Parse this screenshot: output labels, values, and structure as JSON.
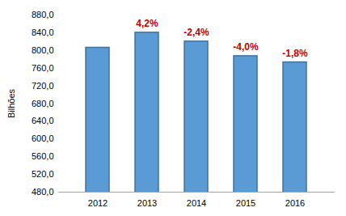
{
  "chart_data": {
    "type": "bar",
    "y_label": "Bilhões",
    "categories": [
      "2012",
      "2013",
      "2014",
      "2015",
      "2016"
    ],
    "values": [
      806,
      840,
      820,
      787,
      773
    ],
    "color": "#5b9bd5",
    "ylim": [
      480,
      880
    ],
    "yticks": [
      {
        "value": 480,
        "label": "480,0"
      },
      {
        "value": 520,
        "label": "520,0"
      },
      {
        "value": 560,
        "label": "560,0"
      },
      {
        "value": 600,
        "label": "600,0"
      },
      {
        "value": 640,
        "label": "640,0"
      },
      {
        "value": 680,
        "label": "680,0"
      },
      {
        "value": 720,
        "label": "720,0"
      },
      {
        "value": 760,
        "label": "760,0"
      },
      {
        "value": 800,
        "label": "800,0"
      },
      {
        "value": 840,
        "label": "840,0"
      },
      {
        "value": 880,
        "label": "880,0"
      }
    ],
    "annotations": [
      {
        "category": "2013",
        "text": "4,2%"
      },
      {
        "category": "2014",
        "text": "-2,4%"
      },
      {
        "category": "2015",
        "text": "-4,0%"
      },
      {
        "category": "2016",
        "text": "-1,8%"
      }
    ],
    "grid": false
  }
}
